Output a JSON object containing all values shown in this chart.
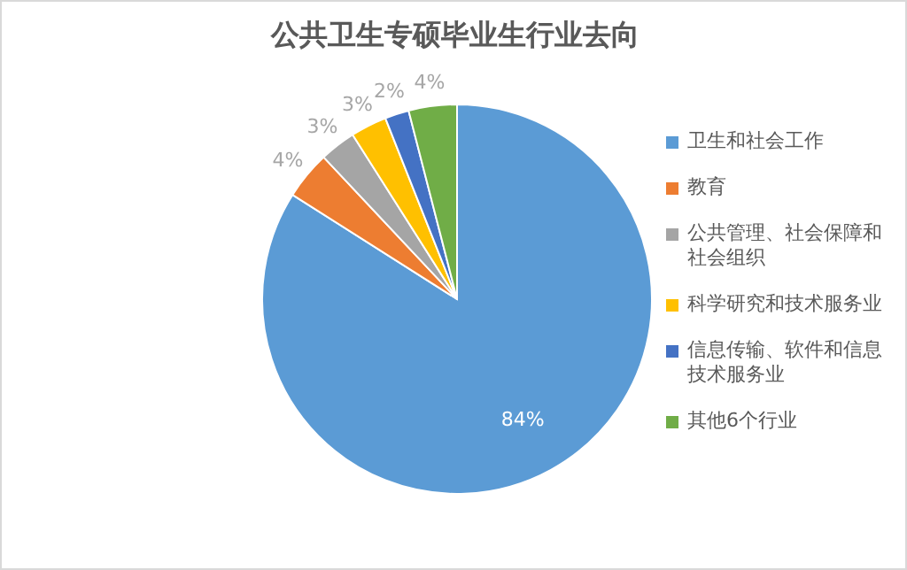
{
  "chart_data": {
    "type": "pie",
    "title": "公共卫生专硕毕业生行业去向",
    "categories": [
      "卫生和社会工作",
      "教育",
      "公共管理、社会保障和社会组织",
      "科学研究和技术服务业",
      "信息传输、软件和信息技术服务业",
      "其他6个行业"
    ],
    "values": [
      84,
      4,
      3,
      3,
      2,
      4
    ],
    "colors": [
      "#5b9bd5",
      "#ed7d31",
      "#a5a5a5",
      "#ffc000",
      "#4472c4",
      "#70ad47"
    ],
    "value_labels": [
      "84%",
      "4%",
      "3%",
      "3%",
      "2%",
      "4%"
    ],
    "legend": "right"
  }
}
